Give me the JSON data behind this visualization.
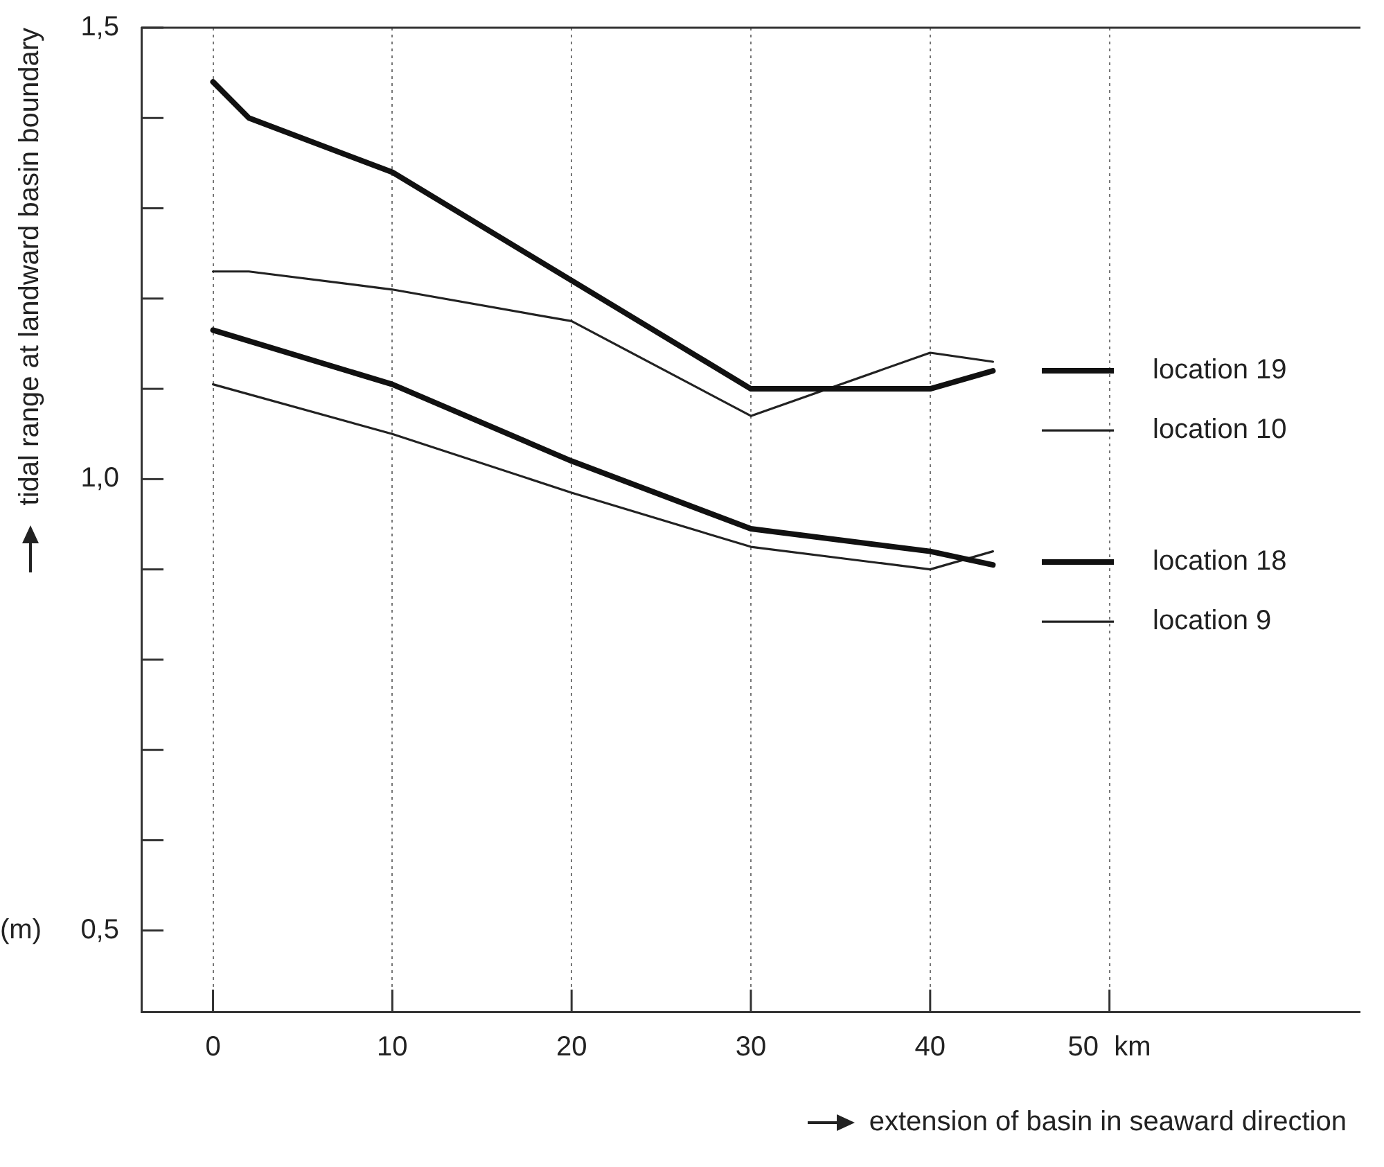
{
  "chart_data": {
    "type": "line",
    "ylabel": "tidal range at landward basin boundary",
    "xlabel": "extension of basin in seaward direction",
    "annotations": [
      "(m)"
    ],
    "xlim": [
      -4,
      64
    ],
    "ylim": [
      0.41,
      1.5
    ],
    "xticks": [
      0,
      10,
      20,
      30,
      40,
      {
        "value": 50,
        "label": "50  km"
      }
    ],
    "yticks": [
      {
        "value": 0.5,
        "label": "0,5"
      },
      {
        "value": 0.6,
        "label": null
      },
      {
        "value": 0.7,
        "label": null
      },
      {
        "value": 0.8,
        "label": null
      },
      {
        "value": 0.9,
        "label": null
      },
      {
        "value": 1.0,
        "label": "1,0"
      },
      {
        "value": 1.1,
        "label": null
      },
      {
        "value": 1.2,
        "label": null
      },
      {
        "value": 1.3,
        "label": null
      },
      {
        "value": 1.4,
        "label": null
      },
      {
        "value": 1.5,
        "label": "1,5"
      }
    ],
    "grid": "x",
    "legend": "right",
    "marker": "none",
    "line_style": "solid",
    "series": [
      {
        "name": "location 19",
        "color": "#111111",
        "x": [
          0,
          2,
          10,
          30,
          40,
          43.5
        ],
        "values": [
          1.44,
          1.4,
          1.34,
          1.1,
          1.1,
          1.12
        ]
      },
      {
        "name": "location 10",
        "color": "#222222",
        "x": [
          0,
          2,
          10,
          20,
          30,
          40,
          43.5
        ],
        "values": [
          1.23,
          1.23,
          1.21,
          1.175,
          1.07,
          1.14,
          1.13
        ]
      },
      {
        "name": "location 18",
        "color": "#111111",
        "x": [
          0,
          10,
          20,
          30,
          40,
          43.5
        ],
        "values": [
          1.165,
          1.105,
          1.02,
          0.945,
          0.92,
          0.905
        ]
      },
      {
        "name": "location 9",
        "color": "#222222",
        "x": [
          0,
          10,
          20,
          30,
          40,
          43.5
        ],
        "values": [
          1.105,
          1.05,
          0.985,
          0.925,
          0.9,
          0.92
        ]
      }
    ]
  }
}
